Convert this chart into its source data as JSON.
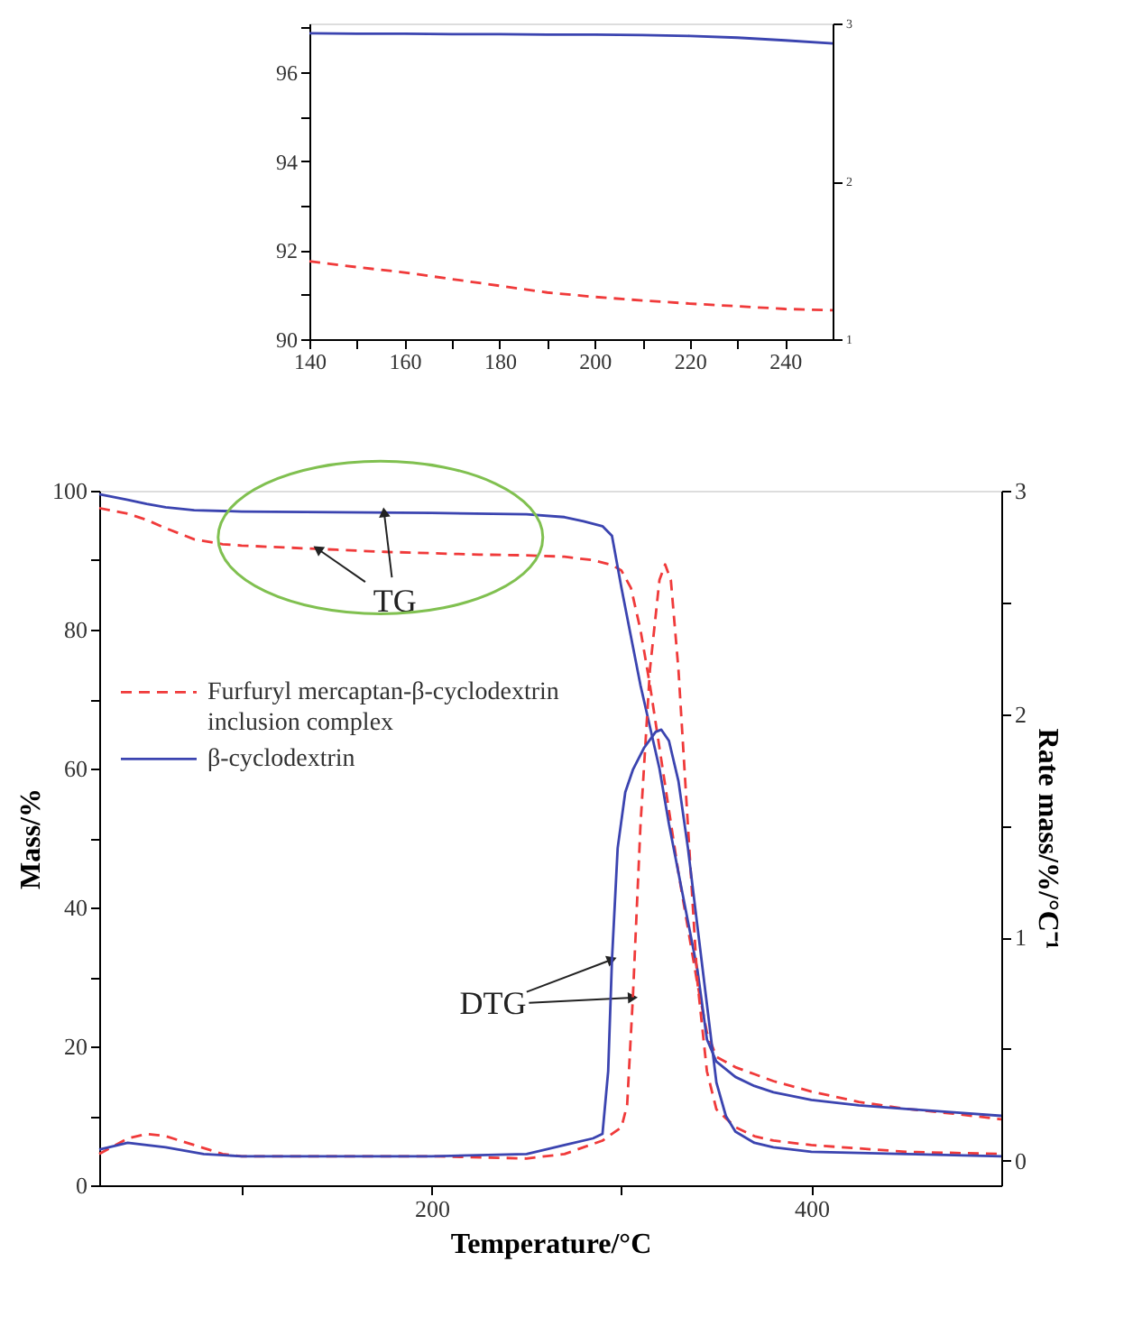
{
  "chart_data": [
    {
      "type": "line",
      "xlim": [
        140,
        250
      ],
      "xticks": [
        140,
        {
          "value": 150,
          "label": null
        },
        160,
        {
          "value": 170,
          "label": null
        },
        180,
        {
          "value": 190,
          "label": null
        },
        200,
        {
          "value": 210,
          "label": null
        },
        220,
        {
          "value": 230,
          "label": null
        },
        240
      ],
      "ylim": [
        90,
        97.1
      ],
      "yticks": [
        90,
        {
          "value": 91,
          "label": null
        },
        92,
        {
          "value": 93,
          "label": null
        },
        94,
        {
          "value": 95,
          "label": null
        },
        96,
        {
          "value": 97,
          "label": null
        }
      ],
      "y2lim": [
        1,
        3
      ],
      "y2ticks": [
        1,
        2,
        3
      ],
      "grid": false,
      "series": [
        {
          "color": "#3b44b0",
          "line_style": "solid",
          "x": [
            140,
            150,
            160,
            170,
            180,
            190,
            200,
            210,
            220,
            230,
            240,
            250
          ],
          "values": [
            96.88,
            96.87,
            96.87,
            96.86,
            96.86,
            96.85,
            96.85,
            96.84,
            96.82,
            96.78,
            96.72,
            96.65
          ]
        },
        {
          "color": "#f03a3a",
          "line_style": "dashed",
          "x": [
            140,
            150,
            160,
            170,
            180,
            190,
            200,
            210,
            220,
            230,
            240,
            250
          ],
          "values": [
            91.75,
            91.62,
            91.5,
            91.35,
            91.2,
            91.05,
            90.95,
            90.87,
            90.8,
            90.74,
            90.68,
            90.65
          ]
        }
      ]
    },
    {
      "type": "line",
      "xlabel": "Temperature/°C",
      "ylabel": "Mass/%",
      "y2label": "Rate mass/%/°C⁻¹",
      "xlim": [
        25,
        500
      ],
      "xticks": [
        {
          "value": 100,
          "label": null
        },
        200,
        {
          "value": 300,
          "label": null
        },
        400
      ],
      "ylim": [
        0,
        100
      ],
      "yticks": [
        0,
        {
          "value": 10,
          "label": null
        },
        20,
        {
          "value": 30,
          "label": null
        },
        40,
        {
          "value": 50,
          "label": null
        },
        60,
        {
          "value": 70,
          "label": null
        },
        80,
        {
          "value": 90,
          "label": null
        },
        100
      ],
      "y2lim": [
        -0.11,
        3
      ],
      "y2ticks": [
        0,
        {
          "value": 0.5,
          "label": null
        },
        1,
        {
          "value": 1.5,
          "label": null
        },
        2,
        {
          "value": 2.5,
          "label": null
        },
        3
      ],
      "grid": false,
      "legend": "top left",
      "annotations": [
        {
          "text": "TG",
          "x": 175,
          "y": 96.9
        },
        {
          "text": "DTG",
          "x": 295,
          "y": 32.5
        }
      ],
      "series": [
        {
          "name": "Furfuryl mercaptan-β-cyclodextrin inclusion complex",
          "color": "#f03a3a",
          "line_style": "dashed",
          "x": [
            25,
            40,
            50,
            60,
            75,
            90,
            100,
            125,
            150,
            175,
            200,
            225,
            250,
            270,
            285,
            295,
            300,
            305,
            310,
            315,
            320,
            325,
            330,
            335,
            340,
            345,
            350,
            360,
            370,
            380,
            400,
            425,
            450,
            475,
            500
          ],
          "values": [
            97.5,
            96.7,
            95.8,
            94.6,
            93.0,
            92.3,
            92.1,
            91.8,
            91.5,
            91.2,
            91.0,
            90.8,
            90.7,
            90.5,
            90.0,
            89.3,
            88.5,
            86,
            80,
            72,
            63,
            54,
            45,
            37,
            29,
            22,
            18.5,
            17,
            16,
            15,
            13.5,
            12,
            11,
            10.3,
            9.5
          ]
        },
        {
          "name": "β-cyclodextrin",
          "color": "#3b44b0",
          "line_style": "solid",
          "x": [
            25,
            40,
            50,
            60,
            75,
            100,
            150,
            200,
            250,
            270,
            280,
            290,
            295,
            300,
            305,
            310,
            315,
            320,
            325,
            330,
            335,
            340,
            345,
            350,
            360,
            370,
            380,
            400,
            425,
            450,
            475,
            500
          ],
          "values": [
            99.5,
            98.7,
            98.1,
            97.6,
            97.2,
            97.0,
            96.9,
            96.8,
            96.6,
            96.2,
            95.6,
            94.9,
            93.5,
            86,
            79,
            72,
            66,
            60,
            52,
            45,
            38,
            31,
            21,
            17.8,
            15.6,
            14.3,
            13.4,
            12.3,
            11.5,
            11,
            10.5,
            10
          ]
        },
        {
          "color": "#f03a3a",
          "line_style": "dashed",
          "axis": "y2",
          "x": [
            25,
            40,
            50,
            60,
            75,
            90,
            100,
            150,
            200,
            250,
            270,
            280,
            290,
            300,
            303,
            306,
            310,
            315,
            320,
            323,
            326,
            330,
            335,
            340,
            345,
            350,
            360,
            370,
            380,
            400,
            450,
            500
          ],
          "values": [
            0.03,
            0.1,
            0.12,
            0.11,
            0.07,
            0.03,
            0.02,
            0.02,
            0.02,
            0.01,
            0.03,
            0.06,
            0.09,
            0.15,
            0.25,
            0.73,
            1.5,
            2.2,
            2.6,
            2.67,
            2.6,
            2.2,
            1.5,
            0.8,
            0.4,
            0.23,
            0.15,
            0.11,
            0.09,
            0.07,
            0.04,
            0.03
          ]
        },
        {
          "color": "#3b44b0",
          "line_style": "solid",
          "axis": "y2",
          "x": [
            25,
            40,
            60,
            80,
            100,
            150,
            200,
            250,
            270,
            285,
            290,
            293,
            295,
            298,
            302,
            306,
            312,
            318,
            321,
            325,
            330,
            335,
            340,
            345,
            350,
            355,
            360,
            370,
            380,
            400,
            450,
            500
          ],
          "values": [
            0.05,
            0.08,
            0.06,
            0.03,
            0.02,
            0.02,
            0.02,
            0.03,
            0.07,
            0.1,
            0.12,
            0.4,
            0.9,
            1.4,
            1.65,
            1.75,
            1.85,
            1.92,
            1.93,
            1.88,
            1.7,
            1.4,
            1.05,
            0.7,
            0.35,
            0.2,
            0.13,
            0.08,
            0.06,
            0.04,
            0.03,
            0.02
          ]
        }
      ]
    }
  ]
}
